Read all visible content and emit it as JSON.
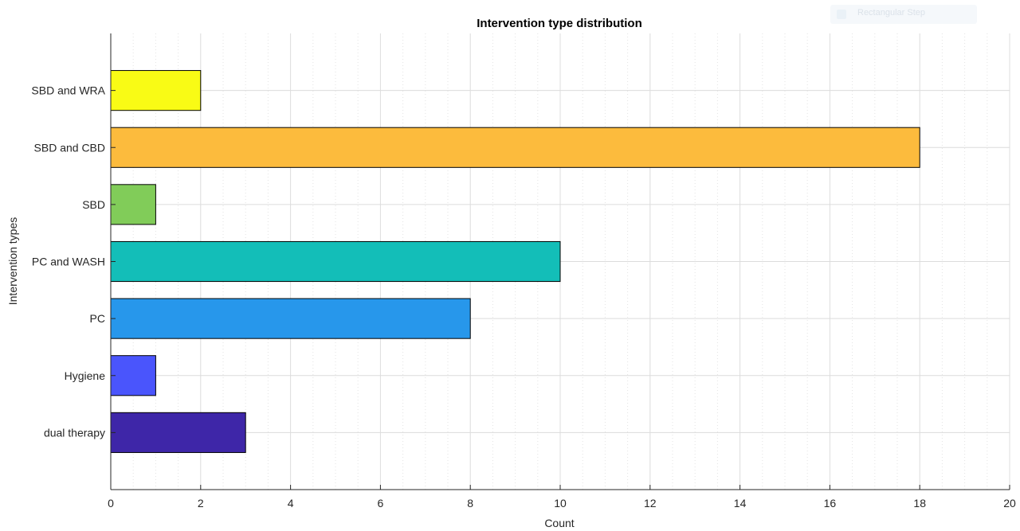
{
  "toolbar": {
    "label": "Rectangular Step"
  },
  "chart_data": {
    "type": "bar",
    "orientation": "horizontal",
    "title": "Intervention type distribution",
    "xlabel": "Count",
    "ylabel": "Intervention types",
    "categories": [
      "dual therapy",
      "Hygiene",
      "PC",
      "PC and WASH",
      "SBD",
      "SBD and CBD",
      "SBD and WRA"
    ],
    "values": [
      3,
      1,
      8,
      10,
      1,
      18,
      2
    ],
    "colors": [
      "#3e26a8",
      "#4a55fc",
      "#2797eb",
      "#13beb8",
      "#81cc59",
      "#fcbb3d",
      "#f9fb15"
    ],
    "xlim": [
      0,
      20
    ],
    "xticks": [
      0,
      2,
      4,
      6,
      8,
      10,
      12,
      14,
      16,
      18,
      20
    ],
    "grid": true,
    "minor_grid": true
  }
}
